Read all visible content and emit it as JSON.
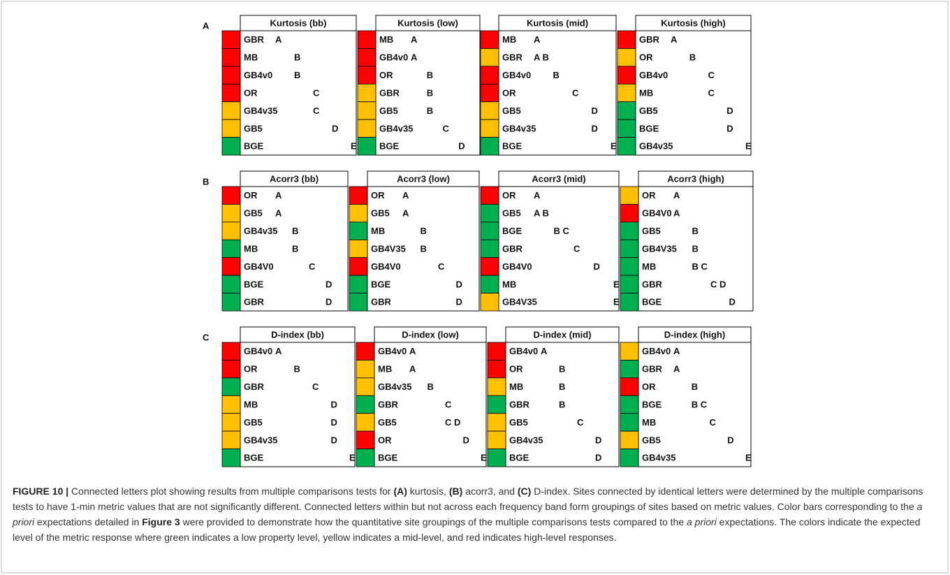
{
  "panels": [
    {
      "label": "A",
      "tables": [
        {
          "title": "Kurtosis (bb)",
          "rows": [
            {
              "site": "GBR",
              "letters": "A",
              "color": "red"
            },
            {
              "site": "MB",
              "letters": "B",
              "color": "red"
            },
            {
              "site": "GB4v0",
              "letters": "B",
              "color": "red"
            },
            {
              "site": "OR",
              "letters": "C",
              "color": "red"
            },
            {
              "site": "GB4v35",
              "letters": "C",
              "color": "yellow"
            },
            {
              "site": "GB5",
              "letters": "D",
              "color": "yellow"
            },
            {
              "site": "BGE",
              "letters": "E",
              "color": "green"
            }
          ]
        },
        {
          "title": "Kurtosis (low)",
          "rows": [
            {
              "site": "MB",
              "letters": "A",
              "color": "red"
            },
            {
              "site": "GB4v0",
              "letters": "A",
              "color": "red"
            },
            {
              "site": "OR",
              "letters": "B",
              "color": "red"
            },
            {
              "site": "GBR",
              "letters": "B",
              "color": "yellow"
            },
            {
              "site": "GB5",
              "letters": "B",
              "color": "yellow"
            },
            {
              "site": "GB4v35",
              "letters": "C",
              "color": "yellow"
            },
            {
              "site": "BGE",
              "letters": "D",
              "color": "green"
            }
          ]
        },
        {
          "title": "Kurtosis (mid)",
          "rows": [
            {
              "site": "MB",
              "letters": "A",
              "color": "red"
            },
            {
              "site": "GBR",
              "letters": "A B",
              "color": "yellow"
            },
            {
              "site": "GB4v0",
              "letters": "B",
              "color": "red"
            },
            {
              "site": "OR",
              "letters": "C",
              "color": "red"
            },
            {
              "site": "GB5",
              "letters": "D",
              "color": "yellow"
            },
            {
              "site": "GB4v35",
              "letters": "D",
              "color": "yellow"
            },
            {
              "site": "BGE",
              "letters": "E",
              "color": "green"
            }
          ]
        },
        {
          "title": "Kurtosis (high)",
          "rows": [
            {
              "site": "GBR",
              "letters": "A",
              "color": "red"
            },
            {
              "site": "OR",
              "letters": "B",
              "color": "yellow"
            },
            {
              "site": "GB4v0",
              "letters": "C",
              "color": "red"
            },
            {
              "site": "MB",
              "letters": "C",
              "color": "yellow"
            },
            {
              "site": "GB5",
              "letters": "D",
              "color": "green"
            },
            {
              "site": "BGE",
              "letters": "D",
              "color": "green"
            },
            {
              "site": "GB4v35",
              "letters": "E",
              "color": "green"
            }
          ]
        }
      ]
    },
    {
      "label": "B",
      "tables": [
        {
          "title": "Acorr3 (bb)",
          "rows": [
            {
              "site": "OR",
              "letters": "A",
              "color": "red"
            },
            {
              "site": "GB5",
              "letters": "A",
              "color": "yellow"
            },
            {
              "site": "GB4v35",
              "letters": "B",
              "color": "yellow"
            },
            {
              "site": "MB",
              "letters": "B",
              "color": "green"
            },
            {
              "site": "GB4V0",
              "letters": "C",
              "color": "red"
            },
            {
              "site": "BGE",
              "letters": "D",
              "color": "green"
            },
            {
              "site": "GBR",
              "letters": "D",
              "color": "green"
            }
          ]
        },
        {
          "title": "Acorr3 (low)",
          "rows": [
            {
              "site": "OR",
              "letters": "A",
              "color": "red"
            },
            {
              "site": "GB5",
              "letters": "A",
              "color": "yellow"
            },
            {
              "site": "MB",
              "letters": "B",
              "color": "green"
            },
            {
              "site": "GB4V35",
              "letters": "B",
              "color": "yellow"
            },
            {
              "site": "GB4V0",
              "letters": "C",
              "color": "red"
            },
            {
              "site": "BGE",
              "letters": "D",
              "color": "green"
            },
            {
              "site": "GBR",
              "letters": "D",
              "color": "green"
            }
          ]
        },
        {
          "title": "Acorr3 (mid)",
          "rows": [
            {
              "site": "OR",
              "letters": "A",
              "color": "red"
            },
            {
              "site": "GB5",
              "letters": "A B",
              "color": "green"
            },
            {
              "site": "BGE",
              "letters": "B C",
              "color": "green"
            },
            {
              "site": "GBR",
              "letters": "C",
              "color": "green"
            },
            {
              "site": "GB4V0",
              "letters": "D",
              "color": "red"
            },
            {
              "site": "MB",
              "letters": "E",
              "color": "green"
            },
            {
              "site": "GB4V35",
              "letters": "E",
              "color": "yellow"
            }
          ]
        },
        {
          "title": "Acorr3 (high)",
          "rows": [
            {
              "site": "OR",
              "letters": "A",
              "color": "yellow"
            },
            {
              "site": "GB4V0",
              "letters": "A",
              "color": "red"
            },
            {
              "site": "GB5",
              "letters": "B",
              "color": "green"
            },
            {
              "site": "GB4V35",
              "letters": "B",
              "color": "green"
            },
            {
              "site": "MB",
              "letters": "B C",
              "color": "green"
            },
            {
              "site": "GBR",
              "letters": "C D",
              "color": "green"
            },
            {
              "site": "BGE",
              "letters": "D",
              "color": "green"
            }
          ]
        }
      ]
    },
    {
      "label": "C",
      "tables": [
        {
          "title": "D-index (bb)",
          "rows": [
            {
              "site": "GB4v0",
              "letters": "A",
              "color": "red"
            },
            {
              "site": "OR",
              "letters": "B",
              "color": "red"
            },
            {
              "site": "GBR",
              "letters": "C",
              "color": "green"
            },
            {
              "site": "MB",
              "letters": "D",
              "color": "yellow"
            },
            {
              "site": "GB5",
              "letters": "D",
              "color": "yellow"
            },
            {
              "site": "GB4v35",
              "letters": "D",
              "color": "yellow"
            },
            {
              "site": "BGE",
              "letters": "E",
              "color": "green"
            }
          ]
        },
        {
          "title": "D-index (low)",
          "rows": [
            {
              "site": "GB4v0",
              "letters": "A",
              "color": "red"
            },
            {
              "site": "MB",
              "letters": "A",
              "color": "yellow"
            },
            {
              "site": "GB4v35",
              "letters": "B",
              "color": "yellow"
            },
            {
              "site": "GBR",
              "letters": "C",
              "color": "green"
            },
            {
              "site": "GB5",
              "letters": "C D",
              "color": "yellow"
            },
            {
              "site": "OR",
              "letters": "D",
              "color": "red"
            },
            {
              "site": "BGE",
              "letters": "E",
              "color": "green"
            }
          ]
        },
        {
          "title": "D-index (mid)",
          "rows": [
            {
              "site": "GB4v0",
              "letters": "A",
              "color": "red"
            },
            {
              "site": "OR",
              "letters": "B",
              "color": "red"
            },
            {
              "site": "MB",
              "letters": "B",
              "color": "yellow"
            },
            {
              "site": "GBR",
              "letters": "B",
              "color": "green"
            },
            {
              "site": "GB5",
              "letters": "C",
              "color": "yellow"
            },
            {
              "site": "GB4v35",
              "letters": "D",
              "color": "yellow"
            },
            {
              "site": "BGE",
              "letters": "D",
              "color": "green"
            }
          ]
        },
        {
          "title": "D-index (high)",
          "rows": [
            {
              "site": "GB4v0",
              "letters": "A",
              "color": "yellow"
            },
            {
              "site": "GBR",
              "letters": "A",
              "color": "green"
            },
            {
              "site": "OR",
              "letters": "B",
              "color": "red"
            },
            {
              "site": "BGE",
              "letters": "B C",
              "color": "green"
            },
            {
              "site": "MB",
              "letters": "C",
              "color": "green"
            },
            {
              "site": "GB5",
              "letters": "D",
              "color": "yellow"
            },
            {
              "site": "GB4v35",
              "letters": "E",
              "color": "green"
            }
          ]
        }
      ]
    }
  ],
  "caption": {
    "segments": [
      "FIGURE 10 |",
      " Connected letters plot showing results from multiple comparisons tests for ",
      "(A)",
      " kurtosis, ",
      "(B)",
      " acorr3, and ",
      "(C)",
      " D-index. Sites connected by identical letters were determined by the multiple comparisons tests to have 1-min metric values that are not significantly different. Connected letters within but not across each frequency band form groupings of sites based on metric values. Color bars corresponding to the ",
      "a priori",
      " expectations detailed in ",
      "Figure 3",
      " were provided to demonstrate how the quantitative site groupings of the multiple comparisons tests compared to the ",
      "a priori",
      " expectations. The colors indicate the expected level of the metric response where green indicates a low property level, yellow indicates a mid-level, and red indicates high-level responses."
    ]
  }
}
